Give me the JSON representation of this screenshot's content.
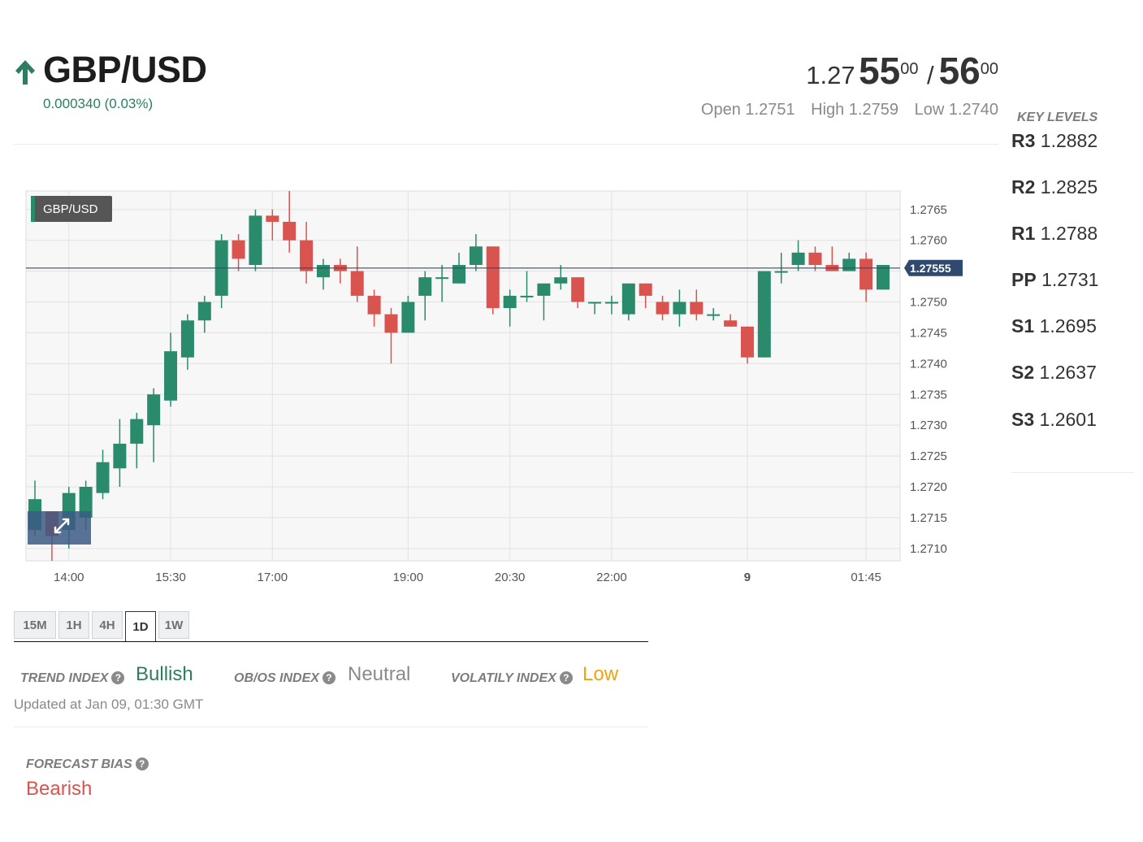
{
  "header": {
    "pair": "GBP/USD",
    "trend_icon": "arrow-up-icon",
    "change": "0.000340 (0.03%)",
    "price": {
      "bid_prefix": "1.27",
      "bid_big": "55",
      "bid_sup": "00",
      "separator": "/",
      "ask_big": "56",
      "ask_sup": "00"
    },
    "ohl": {
      "open": "Open 1.2751",
      "high": "High 1.2759",
      "low": "Low 1.2740"
    }
  },
  "key_levels": {
    "title": "KEY LEVELS",
    "items": [
      {
        "label": "R3",
        "value": "1.2882"
      },
      {
        "label": "R2",
        "value": "1.2825"
      },
      {
        "label": "R1",
        "value": "1.2788"
      },
      {
        "label": "PP",
        "value": "1.2731"
      },
      {
        "label": "S1",
        "value": "1.2695"
      },
      {
        "label": "S2",
        "value": "1.2637"
      },
      {
        "label": "S3",
        "value": "1.2601"
      }
    ]
  },
  "timeframes": {
    "items": [
      "15M",
      "1H",
      "4H",
      "1D",
      "1W"
    ],
    "active": "1D"
  },
  "indices": {
    "trend": {
      "label": "TREND INDEX",
      "value": "Bullish"
    },
    "obos": {
      "label": "OB/OS INDEX",
      "value": "Neutral"
    },
    "volatility": {
      "label": "VOLATILY INDEX",
      "value": "Low"
    },
    "help_icon": "question-circle-icon",
    "updated": "Updated at Jan 09, 01:30 GMT"
  },
  "forecast": {
    "label": "FORECAST BIAS",
    "value": "Bearish"
  },
  "colors": {
    "up": "#2a8a6c",
    "down": "#d9534f",
    "accent_green": "#2e7d5f",
    "low_orange": "#f0a30a",
    "price_line": "#2f4a6e"
  },
  "chart_data": {
    "type": "candlestick",
    "legend": "GBP/USD",
    "current_price_label": "1.27555",
    "current_price": 1.27555,
    "expand_icon": "expand-arrows-icon",
    "ylim": [
      1.2708,
      1.2768
    ],
    "yticks": [
      "1.2765",
      "1.2760",
      "1.2755",
      "1.2750",
      "1.2745",
      "1.2740",
      "1.2735",
      "1.2730",
      "1.2725",
      "1.2720",
      "1.2715",
      "1.2710"
    ],
    "ytick_values": [
      1.2765,
      1.276,
      1.2755,
      1.275,
      1.2745,
      1.274,
      1.2735,
      1.273,
      1.2725,
      1.272,
      1.2715,
      1.271
    ],
    "xticks": [
      {
        "label": "14:00",
        "i": 2
      },
      {
        "label": "15:30",
        "i": 8
      },
      {
        "label": "17:00",
        "i": 14
      },
      {
        "label": "19:00",
        "i": 22
      },
      {
        "label": "20:30",
        "i": 28
      },
      {
        "label": "22:00",
        "i": 34
      },
      {
        "label": "9",
        "i": 42
      },
      {
        "label": "01:45",
        "i": 49
      }
    ],
    "candles": [
      {
        "o": 1.2713,
        "h": 1.2721,
        "l": 1.2712,
        "c": 1.2718
      },
      {
        "o": 1.2716,
        "h": 1.2716,
        "l": 1.2708,
        "c": 1.2712
      },
      {
        "o": 1.2713,
        "h": 1.272,
        "l": 1.271,
        "c": 1.2719
      },
      {
        "o": 1.2715,
        "h": 1.2721,
        "l": 1.2713,
        "c": 1.272
      },
      {
        "o": 1.2719,
        "h": 1.2726,
        "l": 1.2718,
        "c": 1.2724
      },
      {
        "o": 1.2723,
        "h": 1.2731,
        "l": 1.272,
        "c": 1.2727
      },
      {
        "o": 1.2727,
        "h": 1.2732,
        "l": 1.2723,
        "c": 1.2731
      },
      {
        "o": 1.273,
        "h": 1.2736,
        "l": 1.2724,
        "c": 1.2735
      },
      {
        "o": 1.2734,
        "h": 1.2745,
        "l": 1.2733,
        "c": 1.2742
      },
      {
        "o": 1.2741,
        "h": 1.2748,
        "l": 1.2739,
        "c": 1.2747
      },
      {
        "o": 1.2747,
        "h": 1.2751,
        "l": 1.2745,
        "c": 1.275
      },
      {
        "o": 1.2751,
        "h": 1.2761,
        "l": 1.2749,
        "c": 1.276
      },
      {
        "o": 1.276,
        "h": 1.2761,
        "l": 1.2755,
        "c": 1.2757
      },
      {
        "o": 1.2756,
        "h": 1.2765,
        "l": 1.2755,
        "c": 1.2764
      },
      {
        "o": 1.2764,
        "h": 1.2765,
        "l": 1.276,
        "c": 1.2763
      },
      {
        "o": 1.2763,
        "h": 1.2768,
        "l": 1.2758,
        "c": 1.276
      },
      {
        "o": 1.276,
        "h": 1.2763,
        "l": 1.2753,
        "c": 1.2755
      },
      {
        "o": 1.2754,
        "h": 1.2757,
        "l": 1.2752,
        "c": 1.2756
      },
      {
        "o": 1.2756,
        "h": 1.2757,
        "l": 1.2753,
        "c": 1.2755
      },
      {
        "o": 1.2755,
        "h": 1.2759,
        "l": 1.275,
        "c": 1.2751
      },
      {
        "o": 1.2751,
        "h": 1.2752,
        "l": 1.2746,
        "c": 1.2748
      },
      {
        "o": 1.2748,
        "h": 1.2749,
        "l": 1.274,
        "c": 1.2745
      },
      {
        "o": 1.2745,
        "h": 1.2751,
        "l": 1.2745,
        "c": 1.275
      },
      {
        "o": 1.2751,
        "h": 1.2755,
        "l": 1.2747,
        "c": 1.2754
      },
      {
        "o": 1.2754,
        "h": 1.2756,
        "l": 1.275,
        "c": 1.2754
      },
      {
        "o": 1.2753,
        "h": 1.2758,
        "l": 1.2753,
        "c": 1.2756
      },
      {
        "o": 1.2756,
        "h": 1.2761,
        "l": 1.2755,
        "c": 1.2759
      },
      {
        "o": 1.2759,
        "h": 1.2759,
        "l": 1.2748,
        "c": 1.2749
      },
      {
        "o": 1.2749,
        "h": 1.2752,
        "l": 1.2746,
        "c": 1.2751
      },
      {
        "o": 1.2751,
        "h": 1.2755,
        "l": 1.275,
        "c": 1.2751
      },
      {
        "o": 1.2751,
        "h": 1.2753,
        "l": 1.2747,
        "c": 1.2753
      },
      {
        "o": 1.2753,
        "h": 1.2756,
        "l": 1.2752,
        "c": 1.2754
      },
      {
        "o": 1.2754,
        "h": 1.2754,
        "l": 1.2749,
        "c": 1.275
      },
      {
        "o": 1.275,
        "h": 1.275,
        "l": 1.2748,
        "c": 1.275
      },
      {
        "o": 1.275,
        "h": 1.2751,
        "l": 1.2748,
        "c": 1.275
      },
      {
        "o": 1.2748,
        "h": 1.2753,
        "l": 1.2747,
        "c": 1.2753
      },
      {
        "o": 1.2753,
        "h": 1.2753,
        "l": 1.2749,
        "c": 1.2751
      },
      {
        "o": 1.275,
        "h": 1.2751,
        "l": 1.2747,
        "c": 1.2748
      },
      {
        "o": 1.2748,
        "h": 1.2752,
        "l": 1.2746,
        "c": 1.275
      },
      {
        "o": 1.275,
        "h": 1.2752,
        "l": 1.2747,
        "c": 1.2748
      },
      {
        "o": 1.2748,
        "h": 1.2749,
        "l": 1.2747,
        "c": 1.2748
      },
      {
        "o": 1.2747,
        "h": 1.2748,
        "l": 1.2746,
        "c": 1.2746
      },
      {
        "o": 1.2746,
        "h": 1.2746,
        "l": 1.274,
        "c": 1.2741
      },
      {
        "o": 1.2741,
        "h": 1.2755,
        "l": 1.2741,
        "c": 1.2755
      },
      {
        "o": 1.2755,
        "h": 1.2758,
        "l": 1.2753,
        "c": 1.2755
      },
      {
        "o": 1.2756,
        "h": 1.276,
        "l": 1.2755,
        "c": 1.2758
      },
      {
        "o": 1.2758,
        "h": 1.2759,
        "l": 1.2755,
        "c": 1.2756
      },
      {
        "o": 1.2756,
        "h": 1.2759,
        "l": 1.2755,
        "c": 1.2755
      },
      {
        "o": 1.2755,
        "h": 1.2758,
        "l": 1.2755,
        "c": 1.2757
      },
      {
        "o": 1.2757,
        "h": 1.2758,
        "l": 1.275,
        "c": 1.2752
      },
      {
        "o": 1.2752,
        "h": 1.2756,
        "l": 1.2752,
        "c": 1.2756
      }
    ]
  }
}
